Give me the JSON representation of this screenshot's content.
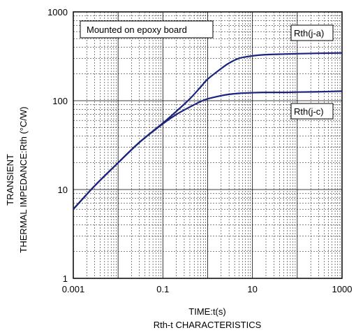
{
  "chart_data": {
    "type": "line",
    "title": "",
    "caption": "Rth-t CHARACTERISTICS",
    "xlabel": "TIME:t(s)",
    "ylabel_line1": "TRANSIENT",
    "ylabel_line2": "THERMAL IMPEDANCE:Rth (°C/W)",
    "x_scale": "log",
    "y_scale": "log",
    "xlim": [
      0.001,
      1000
    ],
    "ylim": [
      1,
      1000
    ],
    "grid": true,
    "x_ticks": [
      "0.001",
      "0.1",
      "10",
      "1000"
    ],
    "y_ticks": [
      "1",
      "10",
      "100",
      "1000"
    ],
    "annotation": "Mounted on epoxy board",
    "series": [
      {
        "name": "Rth(j-a)",
        "color": "#1a237e",
        "x": [
          0.001,
          0.003,
          0.01,
          0.03,
          0.1,
          0.2,
          0.4,
          0.7,
          1,
          2,
          3,
          5,
          10,
          20,
          50,
          100,
          300,
          1000
        ],
        "y": [
          6,
          11,
          20,
          34,
          56,
          76,
          105,
          143,
          175,
          230,
          265,
          300,
          320,
          330,
          335,
          338,
          342,
          345
        ]
      },
      {
        "name": "Rth(j-c)",
        "color": "#1a237e",
        "x": [
          0.001,
          0.003,
          0.01,
          0.03,
          0.1,
          0.2,
          0.4,
          0.7,
          1,
          2,
          3,
          5,
          10,
          20,
          50,
          100,
          300,
          1000
        ],
        "y": [
          6,
          11,
          20,
          34,
          55,
          70,
          85,
          98,
          105,
          114,
          118,
          121,
          123,
          124,
          124,
          125,
          126,
          128
        ]
      }
    ]
  }
}
